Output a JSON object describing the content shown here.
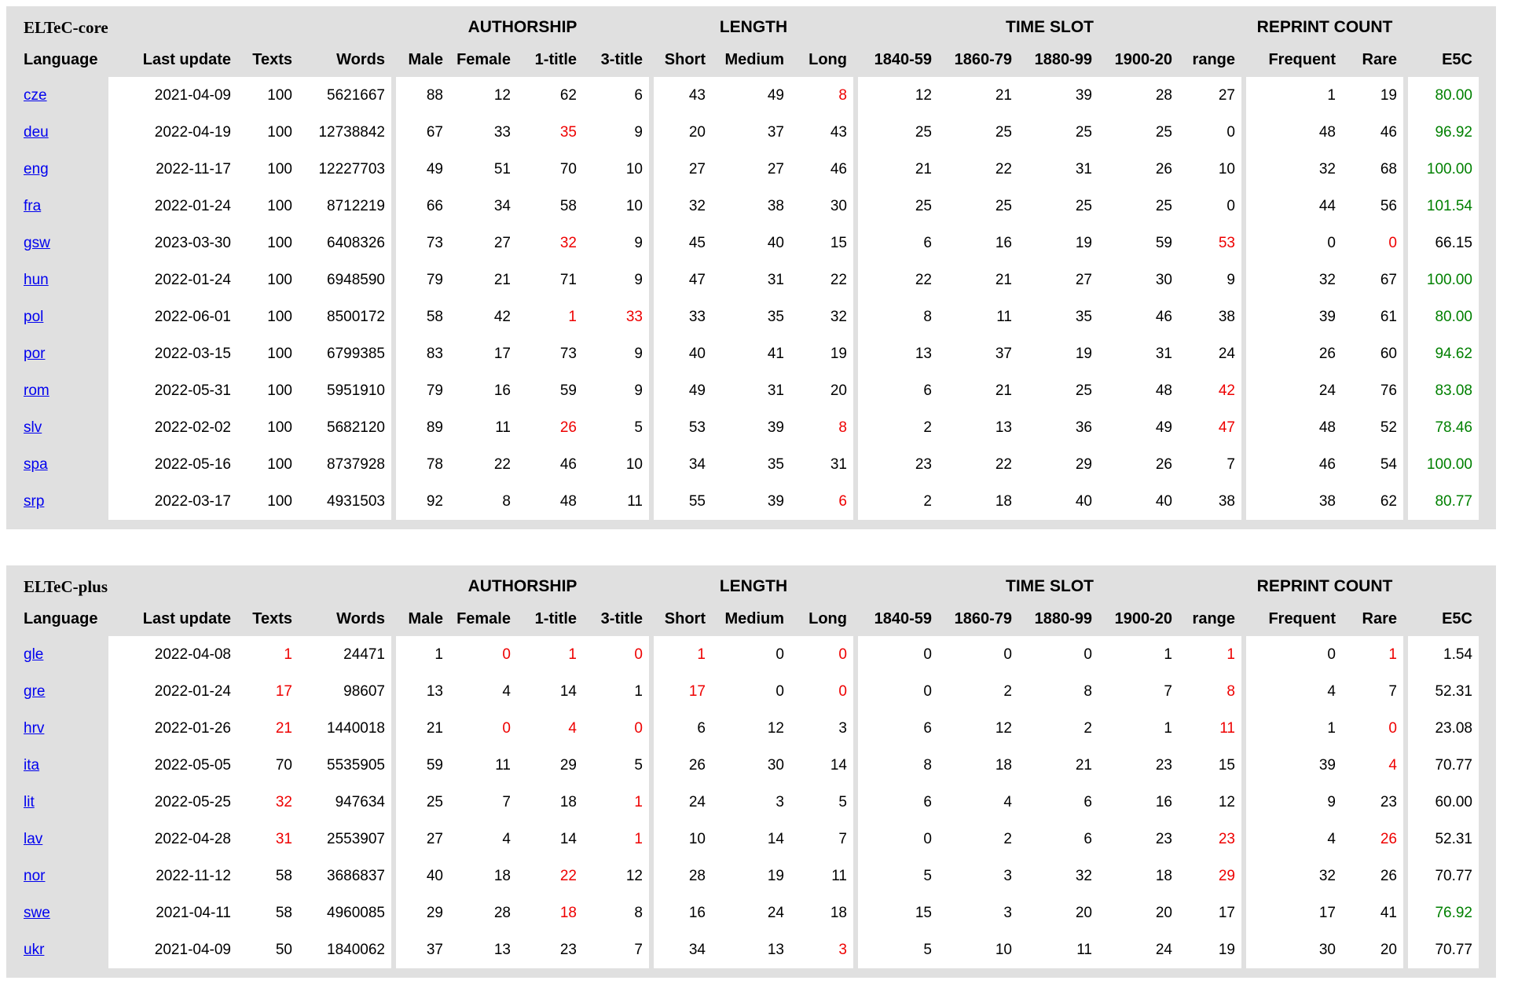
{
  "colors": {
    "table_bg": "#e0e0e0",
    "cell_white": "#ffffff",
    "text_black": "#000000",
    "link_blue": "#0000ee",
    "alert_red": "#ee0000",
    "ok_green": "#008000"
  },
  "column_groups": [
    {
      "group_label": "",
      "columns": [
        "Language",
        "Last update",
        "Texts",
        "Words"
      ]
    },
    {
      "group_label": "AUTHORSHIP",
      "columns": [
        "Male",
        "Female",
        "1-title",
        "3-title"
      ]
    },
    {
      "group_label": "LENGTH",
      "columns": [
        "Short",
        "Medium",
        "Long"
      ]
    },
    {
      "group_label": "TIME SLOT",
      "columns": [
        "1840-59",
        "1860-79",
        "1880-99",
        "1900-20",
        "range"
      ]
    },
    {
      "group_label": "REPRINT COUNT",
      "columns": [
        "Frequent",
        "Rare"
      ]
    },
    {
      "group_label": "",
      "columns": [
        "E5C"
      ]
    }
  ],
  "tables": [
    {
      "id": "eltec-core",
      "title": "ELTeC-core",
      "rows": [
        {
          "language": "cze",
          "cells": [
            "2021-04-09",
            "100",
            "5621667",
            "88",
            "12",
            "62",
            "6",
            "43",
            "49",
            [
              "8",
              "red"
            ],
            "12",
            "21",
            "39",
            "28",
            "27",
            "1",
            "19",
            [
              "80.00",
              "green"
            ]
          ]
        },
        {
          "language": "deu",
          "cells": [
            "2022-04-19",
            "100",
            "12738842",
            "67",
            "33",
            [
              "35",
              "red"
            ],
            "9",
            "20",
            "37",
            "43",
            "25",
            "25",
            "25",
            "25",
            "0",
            "48",
            "46",
            [
              "96.92",
              "green"
            ]
          ]
        },
        {
          "language": "eng",
          "cells": [
            "2022-11-17",
            "100",
            "12227703",
            "49",
            "51",
            "70",
            "10",
            "27",
            "27",
            "46",
            "21",
            "22",
            "31",
            "26",
            "10",
            "32",
            "68",
            [
              "100.00",
              "green"
            ]
          ]
        },
        {
          "language": "fra",
          "cells": [
            "2022-01-24",
            "100",
            "8712219",
            "66",
            "34",
            "58",
            "10",
            "32",
            "38",
            "30",
            "25",
            "25",
            "25",
            "25",
            "0",
            "44",
            "56",
            [
              "101.54",
              "green"
            ]
          ]
        },
        {
          "language": "gsw",
          "cells": [
            "2023-03-30",
            "100",
            "6408326",
            "73",
            "27",
            [
              "32",
              "red"
            ],
            "9",
            "45",
            "40",
            "15",
            "6",
            "16",
            "19",
            "59",
            [
              "53",
              "red"
            ],
            "0",
            [
              "0",
              "red"
            ],
            "66.15"
          ]
        },
        {
          "language": "hun",
          "cells": [
            "2022-01-24",
            "100",
            "6948590",
            "79",
            "21",
            "71",
            "9",
            "47",
            "31",
            "22",
            "22",
            "21",
            "27",
            "30",
            "9",
            "32",
            "67",
            [
              "100.00",
              "green"
            ]
          ]
        },
        {
          "language": "pol",
          "cells": [
            "2022-06-01",
            "100",
            "8500172",
            "58",
            "42",
            [
              "1",
              "red"
            ],
            [
              "33",
              "red"
            ],
            "33",
            "35",
            "32",
            "8",
            "11",
            "35",
            "46",
            "38",
            "39",
            "61",
            [
              "80.00",
              "green"
            ]
          ]
        },
        {
          "language": "por",
          "cells": [
            "2022-03-15",
            "100",
            "6799385",
            "83",
            "17",
            "73",
            "9",
            "40",
            "41",
            "19",
            "13",
            "37",
            "19",
            "31",
            "24",
            "26",
            "60",
            [
              "94.62",
              "green"
            ]
          ]
        },
        {
          "language": "rom",
          "cells": [
            "2022-05-31",
            "100",
            "5951910",
            "79",
            "16",
            "59",
            "9",
            "49",
            "31",
            "20",
            "6",
            "21",
            "25",
            "48",
            [
              "42",
              "red"
            ],
            "24",
            "76",
            [
              "83.08",
              "green"
            ]
          ]
        },
        {
          "language": "slv",
          "cells": [
            "2022-02-02",
            "100",
            "5682120",
            "89",
            "11",
            [
              "26",
              "red"
            ],
            "5",
            "53",
            "39",
            [
              "8",
              "red"
            ],
            "2",
            "13",
            "36",
            "49",
            [
              "47",
              "red"
            ],
            "48",
            "52",
            [
              "78.46",
              "green"
            ]
          ]
        },
        {
          "language": "spa",
          "cells": [
            "2022-05-16",
            "100",
            "8737928",
            "78",
            "22",
            "46",
            "10",
            "34",
            "35",
            "31",
            "23",
            "22",
            "29",
            "26",
            "7",
            "46",
            "54",
            [
              "100.00",
              "green"
            ]
          ]
        },
        {
          "language": "srp",
          "cells": [
            "2022-03-17",
            "100",
            "4931503",
            "92",
            "8",
            "48",
            "11",
            "55",
            "39",
            [
              "6",
              "red"
            ],
            "2",
            "18",
            "40",
            "40",
            "38",
            "38",
            "62",
            [
              "80.77",
              "green"
            ]
          ]
        }
      ]
    },
    {
      "id": "eltec-plus",
      "title": "ELTeC-plus",
      "rows": [
        {
          "language": "gle",
          "cells": [
            "2022-04-08",
            [
              "1",
              "red"
            ],
            "24471",
            "1",
            [
              "0",
              "red"
            ],
            [
              "1",
              "red"
            ],
            [
              "0",
              "red"
            ],
            [
              "1",
              "red"
            ],
            "0",
            [
              "0",
              "red"
            ],
            "0",
            "0",
            "0",
            "1",
            [
              "1",
              "red"
            ],
            "0",
            [
              "1",
              "red"
            ],
            "1.54"
          ]
        },
        {
          "language": "gre",
          "cells": [
            "2022-01-24",
            [
              "17",
              "red"
            ],
            "98607",
            "13",
            "4",
            "14",
            "1",
            [
              "17",
              "red"
            ],
            "0",
            [
              "0",
              "red"
            ],
            "0",
            "2",
            "8",
            "7",
            [
              "8",
              "red"
            ],
            "4",
            "7",
            "52.31"
          ]
        },
        {
          "language": "hrv",
          "cells": [
            "2022-01-26",
            [
              "21",
              "red"
            ],
            "1440018",
            "21",
            [
              "0",
              "red"
            ],
            [
              "4",
              "red"
            ],
            [
              "0",
              "red"
            ],
            "6",
            "12",
            "3",
            "6",
            "12",
            "2",
            "1",
            [
              "11",
              "red"
            ],
            "1",
            [
              "0",
              "red"
            ],
            "23.08"
          ]
        },
        {
          "language": "ita",
          "cells": [
            "2022-05-05",
            "70",
            "5535905",
            "59",
            "11",
            "29",
            "5",
            "26",
            "30",
            "14",
            "8",
            "18",
            "21",
            "23",
            "15",
            "39",
            [
              "4",
              "red"
            ],
            "70.77"
          ]
        },
        {
          "language": "lit",
          "cells": [
            "2022-05-25",
            [
              "32",
              "red"
            ],
            "947634",
            "25",
            "7",
            "18",
            [
              "1",
              "red"
            ],
            "24",
            "3",
            "5",
            "6",
            "4",
            "6",
            "16",
            "12",
            "9",
            "23",
            "60.00"
          ]
        },
        {
          "language": "lav",
          "cells": [
            "2022-04-28",
            [
              "31",
              "red"
            ],
            "2553907",
            "27",
            "4",
            "14",
            [
              "1",
              "red"
            ],
            "10",
            "14",
            "7",
            "0",
            "2",
            "6",
            "23",
            [
              "23",
              "red"
            ],
            "4",
            [
              "26",
              "red"
            ],
            "52.31"
          ]
        },
        {
          "language": "nor",
          "cells": [
            "2022-11-12",
            "58",
            "3686837",
            "40",
            "18",
            [
              "22",
              "red"
            ],
            "12",
            "28",
            "19",
            "11",
            "5",
            "3",
            "32",
            "18",
            [
              "29",
              "red"
            ],
            "32",
            "26",
            "70.77"
          ]
        },
        {
          "language": "swe",
          "cells": [
            "2021-04-11",
            "58",
            "4960085",
            "29",
            "28",
            [
              "18",
              "red"
            ],
            "8",
            "16",
            "24",
            "18",
            "15",
            "3",
            "20",
            "20",
            "17",
            "17",
            "41",
            [
              "76.92",
              "green"
            ]
          ]
        },
        {
          "language": "ukr",
          "cells": [
            "2021-04-09",
            "50",
            "1840062",
            "37",
            "13",
            "23",
            "7",
            "34",
            "13",
            [
              "3",
              "red"
            ],
            "5",
            "10",
            "11",
            "24",
            "19",
            "30",
            "20",
            "70.77"
          ]
        }
      ]
    }
  ]
}
